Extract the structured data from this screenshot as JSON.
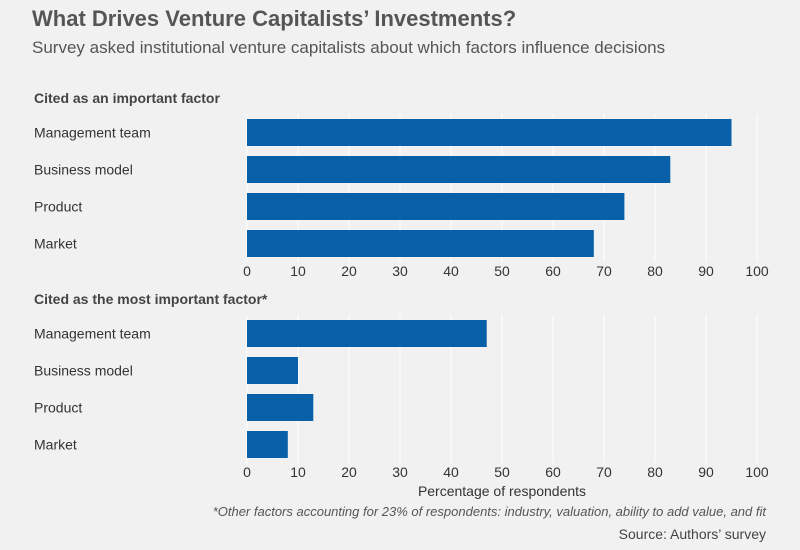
{
  "header": {
    "title": "What Drives Venture Capitalists’ Investments?",
    "subtitle": "Survey asked institutional venture capitalists about which factors influence decisions"
  },
  "footer": {
    "footnote": "*Other factors accounting for 23% of respondents: industry, valuation, ability to add value, and fit",
    "source": "Source: Authors’ survey"
  },
  "colors": {
    "bar": "#0860a8",
    "grid": "#ffffff",
    "background": "#f1f1f1",
    "text": "#333333"
  },
  "chart_data": [
    {
      "type": "bar",
      "orientation": "horizontal",
      "title": "Cited as an important factor",
      "categories": [
        "Management team",
        "Business model",
        "Product",
        "Market"
      ],
      "values": [
        95,
        83,
        74,
        68
      ],
      "xlim": [
        0,
        100
      ],
      "xticks": [
        0,
        10,
        20,
        30,
        40,
        50,
        60,
        70,
        80,
        90,
        100
      ],
      "xlabel": "",
      "grid": true
    },
    {
      "type": "bar",
      "orientation": "horizontal",
      "title": "Cited as the most important factor*",
      "categories": [
        "Management team",
        "Business model",
        "Product",
        "Market"
      ],
      "values": [
        47,
        10,
        13,
        8
      ],
      "xlim": [
        0,
        100
      ],
      "xticks": [
        0,
        10,
        20,
        30,
        40,
        50,
        60,
        70,
        80,
        90,
        100
      ],
      "xlabel": "Percentage of respondents",
      "grid": true
    }
  ]
}
